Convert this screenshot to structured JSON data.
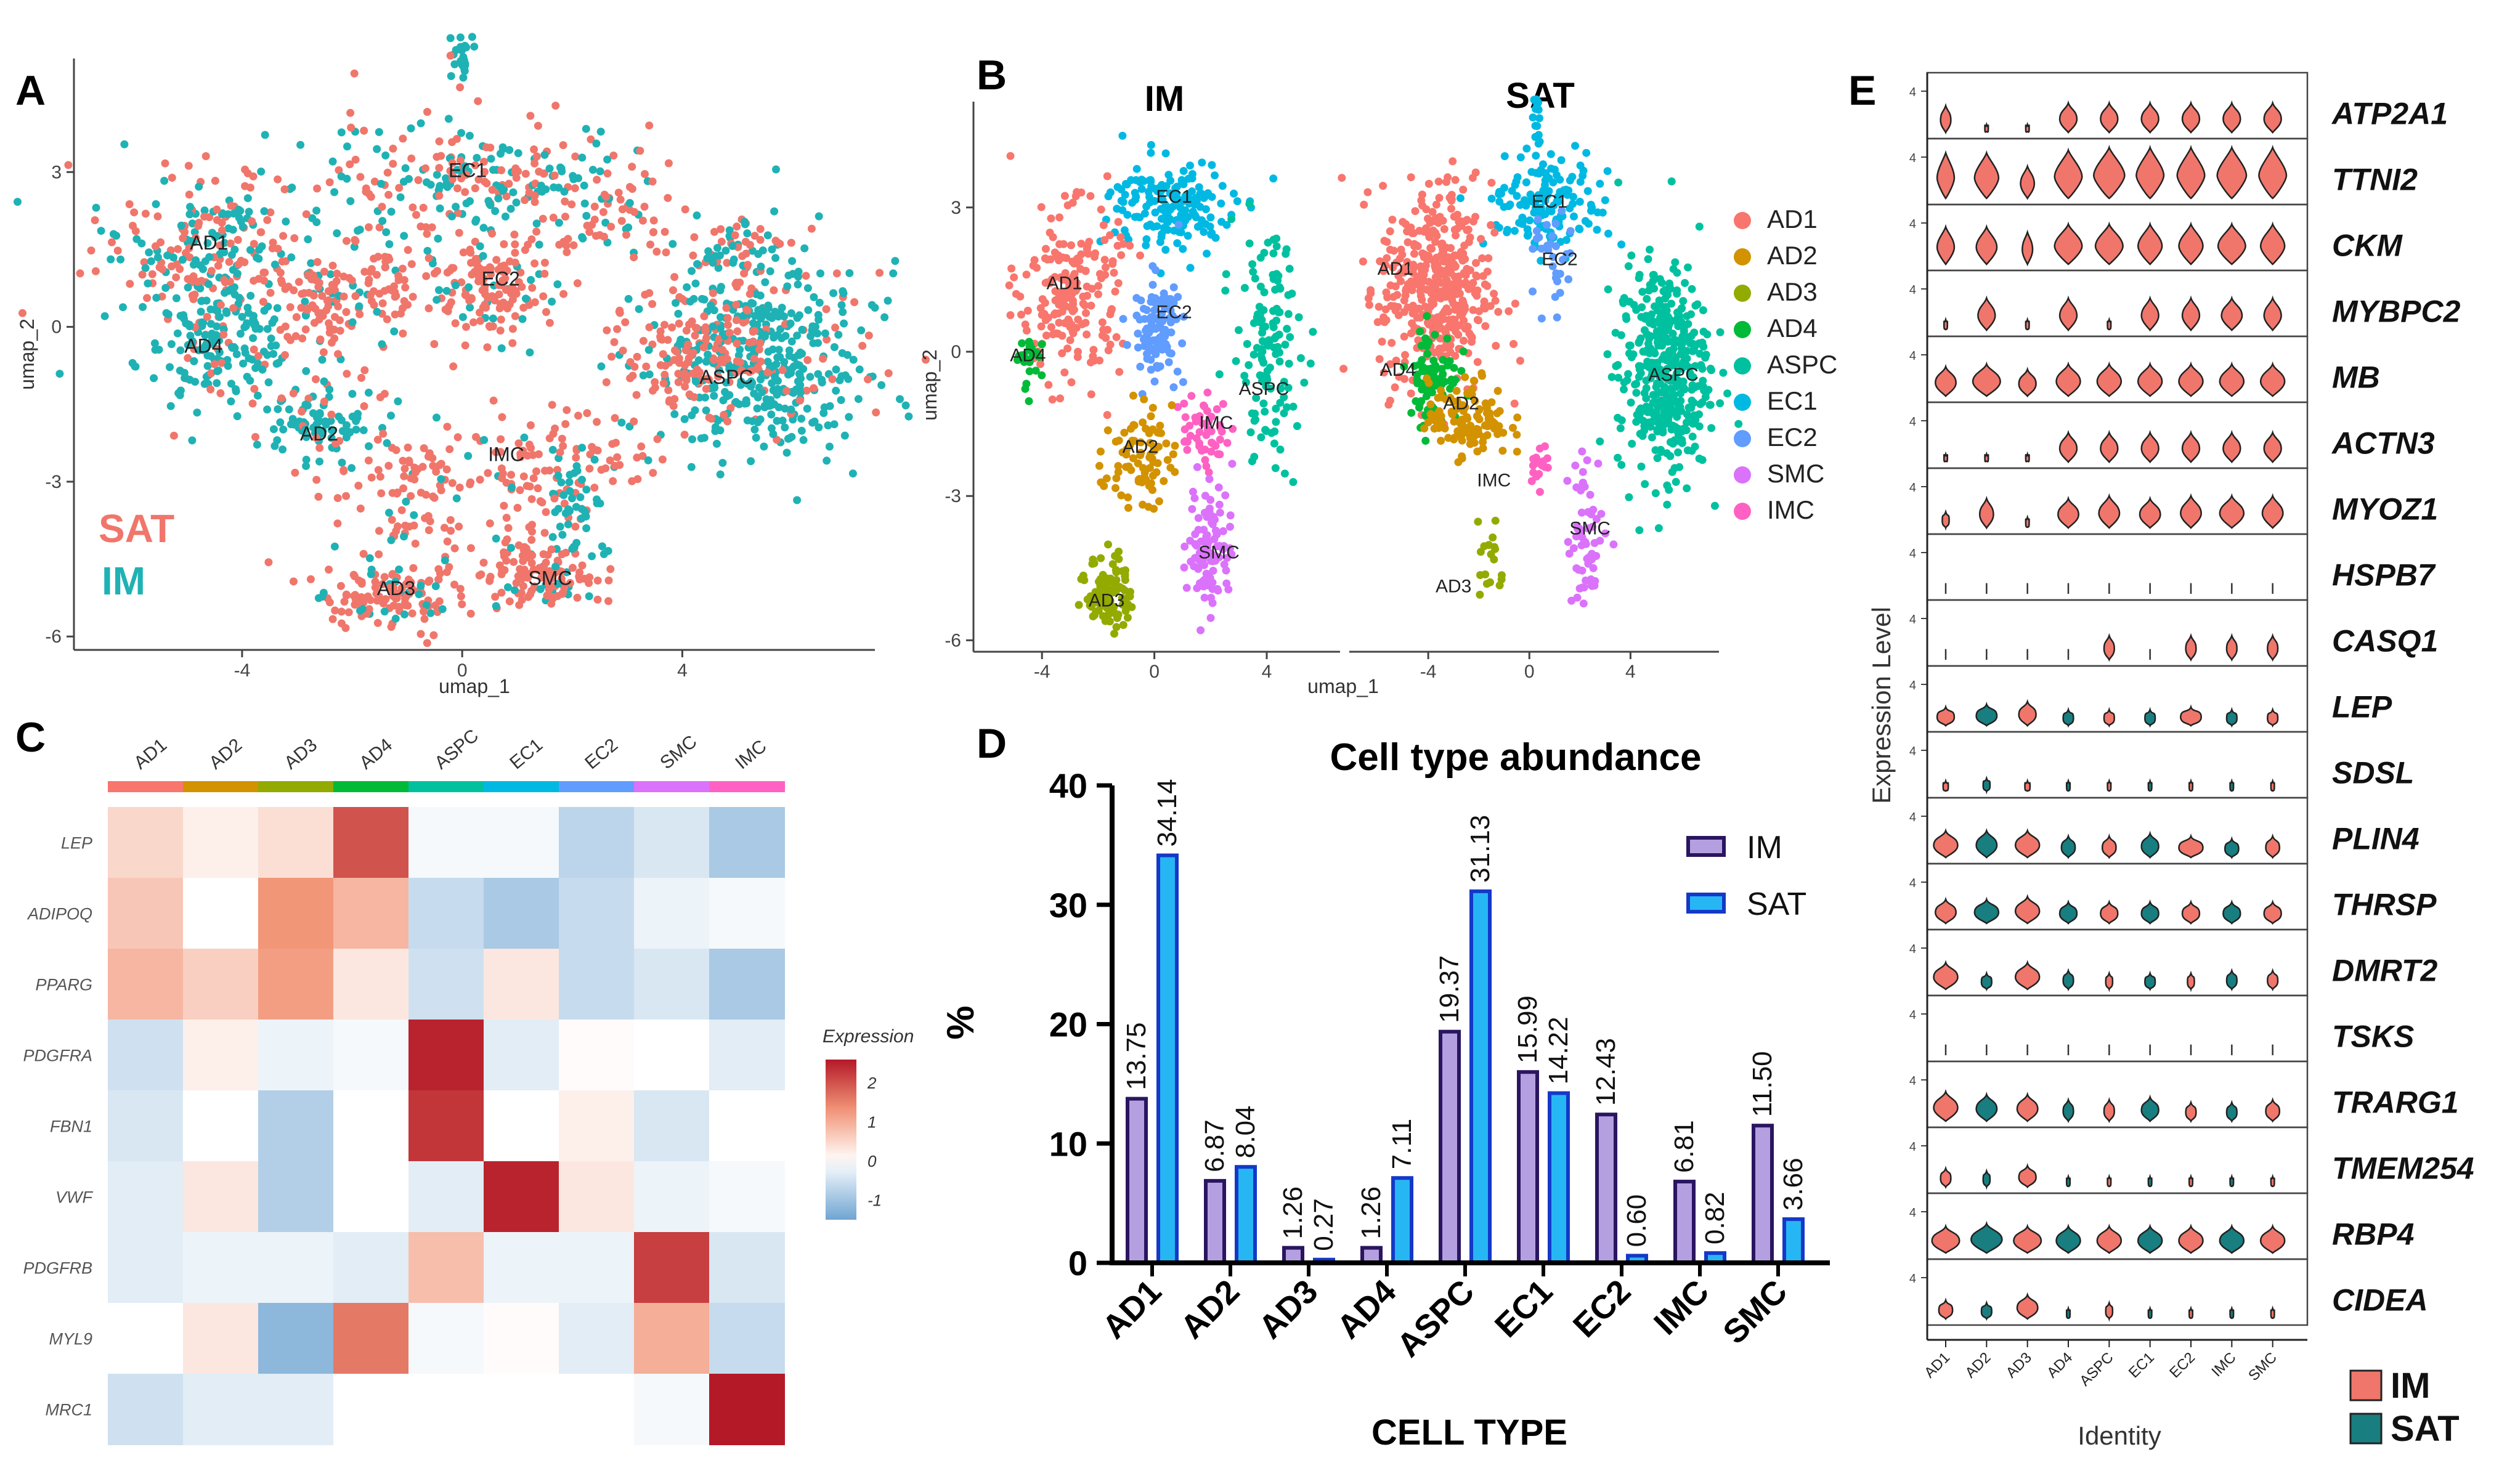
{
  "figure": {
    "panel_labels": [
      "A",
      "B",
      "C",
      "D",
      "E"
    ]
  },
  "chart_data": [
    {
      "id": "A",
      "type": "scatter",
      "title": "",
      "xlabel": "umap_1",
      "ylabel": "umap_2",
      "xlim": [
        -7,
        7.5
      ],
      "ylim": [
        -6.2,
        5.2
      ],
      "xticks": [
        "-4",
        "0",
        "4"
      ],
      "xtick_values": [
        -4,
        0,
        4
      ],
      "yticks": [
        "-6",
        "-3",
        "0",
        "3"
      ],
      "ytick_values": [
        -6,
        -3,
        0,
        3
      ],
      "series": [
        {
          "name": "SAT",
          "color": "#F0766B"
        },
        {
          "name": "IM",
          "color": "#1FB2B5"
        }
      ],
      "cluster_labels": [
        {
          "label": "EC1",
          "x": 0.1,
          "y": 2.9
        },
        {
          "label": "AD1",
          "x": -4.6,
          "y": 1.5
        },
        {
          "label": "EC2",
          "x": 0.7,
          "y": 0.8
        },
        {
          "label": "AD4",
          "x": -4.7,
          "y": -0.5
        },
        {
          "label": "ASPC",
          "x": 4.8,
          "y": -1.1
        },
        {
          "label": "AD2",
          "x": -2.6,
          "y": -2.2
        },
        {
          "label": "IMC",
          "x": 0.8,
          "y": -2.6
        },
        {
          "label": "AD3",
          "x": -1.2,
          "y": -5.2
        },
        {
          "label": "SMC",
          "x": 1.6,
          "y": -5.0
        }
      ]
    },
    {
      "id": "B-IM",
      "type": "scatter",
      "title": "IM",
      "xlabel": "umap_1",
      "ylabel": "umap_2",
      "xlim": [
        -6,
        6.5
      ],
      "ylim": [
        -6.2,
        5.2
      ],
      "xticks": [
        "-4",
        "0",
        "4"
      ],
      "xtick_values": [
        -4,
        0,
        4
      ],
      "yticks": [
        "-6",
        "-3",
        "0",
        "3"
      ],
      "ytick_values": [
        -6,
        -3,
        0,
        3
      ],
      "cluster_labels": [
        {
          "label": "EC1",
          "x": 0.7,
          "y": 3.1
        },
        {
          "label": "AD1",
          "x": -3.2,
          "y": 1.3
        },
        {
          "label": "EC2",
          "x": 0.7,
          "y": 0.7
        },
        {
          "label": "AD4",
          "x": -4.5,
          "y": -0.2
        },
        {
          "label": "ASPC",
          "x": 3.9,
          "y": -0.9
        },
        {
          "label": "IMC",
          "x": 2.2,
          "y": -1.6
        },
        {
          "label": "AD2",
          "x": -0.5,
          "y": -2.1
        },
        {
          "label": "SMC",
          "x": 2.3,
          "y": -4.3
        },
        {
          "label": "AD3",
          "x": -1.7,
          "y": -5.3
        }
      ]
    },
    {
      "id": "B-SAT",
      "type": "scatter",
      "title": "SAT",
      "xlim": [
        -7,
        7.5
      ],
      "ylim": [
        -6.2,
        5.2
      ],
      "xticks": [
        "-4",
        "0",
        "4"
      ],
      "xtick_values": [
        -4,
        0,
        4
      ],
      "cluster_labels": [
        {
          "label": "EC1",
          "x": 0.8,
          "y": 3.0
        },
        {
          "label": "AD1",
          "x": -5.3,
          "y": 1.6
        },
        {
          "label": "EC2",
          "x": 1.2,
          "y": 1.8
        },
        {
          "label": "AD4",
          "x": -5.2,
          "y": -0.5
        },
        {
          "label": "ASPC",
          "x": 5.7,
          "y": -0.6
        },
        {
          "label": "AD2",
          "x": -2.7,
          "y": -1.2
        },
        {
          "label": "IMC",
          "x": -1.4,
          "y": -2.8
        },
        {
          "label": "SMC",
          "x": 2.4,
          "y": -3.8
        },
        {
          "label": "AD3",
          "x": -3.0,
          "y": -5.0
        }
      ],
      "legend": [
        {
          "label": "AD1",
          "color": "#F8766D"
        },
        {
          "label": "AD2",
          "color": "#D39200"
        },
        {
          "label": "AD3",
          "color": "#93AA00"
        },
        {
          "label": "AD4",
          "color": "#00BA38"
        },
        {
          "label": "ASPC",
          "color": "#00C19F"
        },
        {
          "label": "EC1",
          "color": "#00B9E3"
        },
        {
          "label": "EC2",
          "color": "#619CFF"
        },
        {
          "label": "SMC",
          "color": "#DB72FB"
        },
        {
          "label": "IMC",
          "color": "#FF61C3"
        }
      ]
    },
    {
      "id": "C",
      "type": "heatmap",
      "columns": [
        "AD1",
        "AD2",
        "AD3",
        "AD4",
        "ASPC",
        "EC1",
        "EC2",
        "SMC",
        "IMC"
      ],
      "column_colors": [
        "#F8766D",
        "#D39200",
        "#93AA00",
        "#00BA38",
        "#00C19F",
        "#00B9E3",
        "#619CFF",
        "#DB72FB",
        "#FF61C3"
      ],
      "rows": [
        "LEP",
        "ADIPOQ",
        "PPARG",
        "PDGFRA",
        "FBN1",
        "VWF",
        "PDGFRB",
        "MYL9",
        "MRC1"
      ],
      "values": [
        [
          0.5,
          0.2,
          0.4,
          2.0,
          -0.1,
          -0.1,
          -0.7,
          -0.4,
          -0.9
        ],
        [
          0.7,
          0.0,
          1.3,
          0.9,
          -0.6,
          -0.9,
          -0.6,
          -0.2,
          -0.1
        ],
        [
          0.9,
          0.6,
          1.2,
          0.3,
          -0.5,
          0.3,
          -0.6,
          -0.4,
          -0.9
        ],
        [
          -0.5,
          0.2,
          -0.2,
          -0.1,
          2.5,
          -0.3,
          0.05,
          0.0,
          -0.3
        ],
        [
          -0.4,
          0.0,
          -0.8,
          0.0,
          2.3,
          0.0,
          0.2,
          -0.4,
          0.0
        ],
        [
          -0.3,
          0.3,
          -0.8,
          0.0,
          -0.3,
          2.5,
          0.3,
          -0.2,
          -0.1
        ],
        [
          -0.3,
          -0.2,
          -0.2,
          -0.3,
          0.8,
          -0.2,
          -0.2,
          2.2,
          -0.4
        ],
        [
          0.0,
          0.3,
          -1.2,
          1.6,
          -0.1,
          0.05,
          -0.3,
          1.0,
          -0.6
        ],
        [
          -0.5,
          -0.3,
          -0.3,
          0.0,
          0.0,
          0.0,
          0.0,
          -0.1,
          2.6
        ]
      ],
      "legend_title": "Expression",
      "legend_ticks": [
        "2",
        "1",
        "0",
        "-1"
      ],
      "legend_tick_values": [
        2,
        1,
        0,
        -1
      ],
      "vmin": -1.5,
      "vmax": 2.6
    },
    {
      "id": "D",
      "type": "bar",
      "title": "Cell type abundance",
      "xlabel": "CELL TYPE",
      "ylabel": "%",
      "ylim": [
        0,
        40
      ],
      "yticks": [
        "0",
        "10",
        "20",
        "30",
        "40"
      ],
      "ytick_values": [
        0,
        10,
        20,
        30,
        40
      ],
      "categories": [
        "AD1",
        "AD2",
        "AD3",
        "AD4",
        "ASPC",
        "EC1",
        "EC2",
        "IMC",
        "SMC"
      ],
      "series": [
        {
          "name": "IM",
          "color": "#B4A0E0",
          "edge": "#2A1560",
          "values": [
            13.75,
            6.87,
            1.26,
            1.26,
            19.37,
            15.99,
            12.43,
            6.81,
            11.5
          ],
          "labels": [
            "13.75",
            "6.87",
            "1.26",
            "1.26",
            "19.37",
            "15.99",
            "12.43",
            "6.81",
            "11.50"
          ]
        },
        {
          "name": "SAT",
          "color": "#27B6F4",
          "edge": "#1438C8",
          "values": [
            34.14,
            8.04,
            0.27,
            7.11,
            31.13,
            14.22,
            0.6,
            0.82,
            3.66
          ],
          "labels": [
            "34.14",
            "8.04",
            "0.27",
            "7.11",
            "31.13",
            "14.22",
            "0.60",
            "0.82",
            "3.66"
          ]
        }
      ]
    },
    {
      "id": "E",
      "type": "violin",
      "ylabel": "Expression Level",
      "xlabel": "Identity",
      "ytick": "4",
      "identities": [
        "AD1",
        "AD2",
        "AD3",
        "AD4",
        "ASPC",
        "EC1",
        "EC2",
        "IMC",
        "SMC"
      ],
      "genes": [
        "ATP2A1",
        "TTNI2",
        "CKM",
        "MYBPC2",
        "MB",
        "ACTN3",
        "MYOZ1",
        "HSPB7",
        "CASQ1",
        "LEP",
        "SDSL",
        "PLIN4",
        "THRSP",
        "DMRT2",
        "TSKS",
        "TRARG1",
        "TMEM254",
        "RBP4",
        "CIDEA"
      ],
      "legend": [
        {
          "label": "IM",
          "color": "#F0766B"
        },
        {
          "label": "SAT",
          "color": "#187E80"
        }
      ]
    }
  ]
}
